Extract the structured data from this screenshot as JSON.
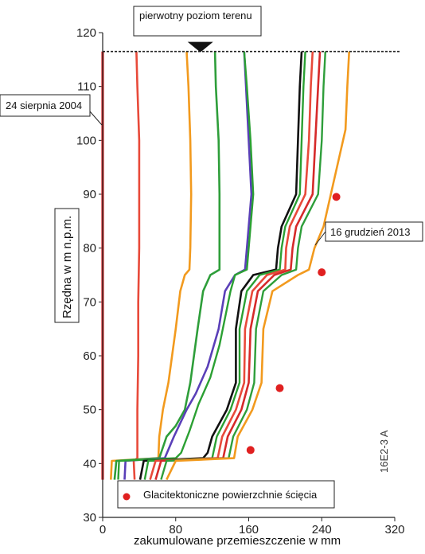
{
  "chart_data": {
    "type": "line",
    "title": "",
    "xlabel": "zakumulowane przemieszczenie w mm",
    "ylabel": "Rzędna w m n.p.m.",
    "xlim": [
      0,
      320
    ],
    "ylim": [
      30,
      120
    ],
    "x_ticks": [
      "0",
      "80",
      "160",
      "240",
      "320"
    ],
    "y_ticks": [
      "30",
      "40",
      "50",
      "60",
      "70",
      "80",
      "90",
      "100",
      "110",
      "120"
    ],
    "ground_level": 116.5,
    "annotations": {
      "ground": "pierwotny poziom terenu",
      "first_date": "24 sierpnia 2004",
      "last_date": "16 grudzień 2013",
      "figure_code": "16E2-3 A"
    },
    "legend": {
      "label": "Glacitektoniczne powierzchnie ścięcia",
      "marker_color": "#e02020"
    },
    "series": [
      {
        "color": "#d62a2a",
        "width": 3.2,
        "points": [
          [
            0,
            116.5
          ],
          [
            0,
            37
          ]
        ]
      },
      {
        "color": "#e84a3a",
        "width": 2.6,
        "points": [
          [
            37,
            116.5
          ],
          [
            38,
            110
          ],
          [
            40,
            100
          ],
          [
            40,
            90
          ],
          [
            40,
            80
          ],
          [
            39,
            70
          ],
          [
            39,
            60
          ],
          [
            38,
            50
          ],
          [
            38,
            41
          ],
          [
            34,
            40.5
          ],
          [
            35,
            37
          ]
        ]
      },
      {
        "color": "#f29a1e",
        "width": 2.6,
        "points": [
          [
            92,
            116.5
          ],
          [
            94,
            110
          ],
          [
            96,
            100
          ],
          [
            97,
            90
          ],
          [
            96,
            80
          ],
          [
            95,
            76
          ],
          [
            90,
            75
          ],
          [
            85,
            72
          ],
          [
            80,
            65
          ],
          [
            72,
            55
          ],
          [
            66,
            50
          ],
          [
            62,
            45
          ],
          [
            61,
            41
          ],
          [
            10,
            40.5
          ],
          [
            9,
            37
          ]
        ]
      },
      {
        "color": "#2e9e3a",
        "width": 2.6,
        "points": [
          [
            123,
            116.5
          ],
          [
            124,
            110
          ],
          [
            127,
            100
          ],
          [
            128,
            90
          ],
          [
            128,
            80
          ],
          [
            128,
            76
          ],
          [
            118,
            75
          ],
          [
            110,
            72
          ],
          [
            104,
            65
          ],
          [
            96,
            55
          ],
          [
            90,
            50
          ],
          [
            80,
            47
          ],
          [
            70,
            45
          ],
          [
            62,
            41
          ],
          [
            15,
            40.5
          ],
          [
            13,
            37
          ]
        ]
      },
      {
        "color": "#5a3fb8",
        "width": 2.6,
        "points": [
          [
            155,
            116.5
          ],
          [
            157,
            110
          ],
          [
            160,
            100
          ],
          [
            163,
            90
          ],
          [
            158,
            80
          ],
          [
            156,
            76
          ],
          [
            145,
            75
          ],
          [
            134,
            72
          ],
          [
            127,
            65
          ],
          [
            115,
            58
          ],
          [
            102,
            53
          ],
          [
            92,
            50
          ],
          [
            78,
            45
          ],
          [
            68,
            41
          ],
          [
            25,
            40.5
          ],
          [
            24,
            37
          ]
        ]
      },
      {
        "color": "#2ba033",
        "width": 2.4,
        "points": [
          [
            155,
            116.5
          ],
          [
            158,
            110
          ],
          [
            162,
            100
          ],
          [
            165,
            90
          ],
          [
            160,
            80
          ],
          [
            158,
            76
          ],
          [
            145,
            75
          ],
          [
            140,
            72
          ],
          [
            128,
            62
          ],
          [
            118,
            56
          ],
          [
            105,
            51
          ],
          [
            95,
            46
          ],
          [
            86,
            42
          ],
          [
            80,
            41
          ],
          [
            18,
            40.5
          ],
          [
            17,
            37
          ]
        ]
      },
      {
        "color": "#111111",
        "width": 2.6,
        "points": [
          [
            218,
            116.5
          ],
          [
            216,
            110
          ],
          [
            214,
            100
          ],
          [
            212,
            90
          ],
          [
            196,
            84
          ],
          [
            192,
            80
          ],
          [
            190,
            76
          ],
          [
            165,
            75
          ],
          [
            152,
            72
          ],
          [
            146,
            65
          ],
          [
            146,
            55
          ],
          [
            136,
            50
          ],
          [
            120,
            45
          ],
          [
            115,
            42
          ],
          [
            110,
            41
          ],
          [
            45,
            40.5
          ],
          [
            41,
            37
          ]
        ]
      },
      {
        "color": "#2ba033",
        "width": 2.4,
        "points": [
          [
            222,
            116.5
          ],
          [
            220,
            110
          ],
          [
            218,
            100
          ],
          [
            216,
            90
          ],
          [
            200,
            84
          ],
          [
            196,
            80
          ],
          [
            194,
            76
          ],
          [
            172,
            75
          ],
          [
            158,
            72
          ],
          [
            150,
            65
          ],
          [
            150,
            55
          ],
          [
            140,
            50
          ],
          [
            125,
            45
          ],
          [
            120,
            41
          ],
          [
            50,
            40.5
          ],
          [
            46,
            37
          ]
        ]
      },
      {
        "color": "#e84a3a",
        "width": 2.6,
        "points": [
          [
            230,
            116.5
          ],
          [
            228,
            110
          ],
          [
            226,
            100
          ],
          [
            222,
            90
          ],
          [
            205,
            84
          ],
          [
            201,
            80
          ],
          [
            200,
            76
          ],
          [
            180,
            75
          ],
          [
            164,
            72
          ],
          [
            156,
            65
          ],
          [
            155,
            55
          ],
          [
            146,
            50
          ],
          [
            131,
            45
          ],
          [
            126,
            41
          ],
          [
            58,
            40.5
          ],
          [
            52,
            37
          ]
        ]
      },
      {
        "color": "#d62a2a",
        "width": 2.6,
        "points": [
          [
            238,
            116.5
          ],
          [
            236,
            110
          ],
          [
            233,
            100
          ],
          [
            230,
            90
          ],
          [
            212,
            84
          ],
          [
            208,
            80
          ],
          [
            206,
            76
          ],
          [
            188,
            75
          ],
          [
            170,
            72
          ],
          [
            162,
            65
          ],
          [
            160,
            55
          ],
          [
            152,
            50
          ],
          [
            137,
            45
          ],
          [
            132,
            41
          ],
          [
            64,
            40.5
          ],
          [
            58,
            37
          ]
        ]
      },
      {
        "color": "#2e9e3a",
        "width": 2.4,
        "points": [
          [
            244,
            116.5
          ],
          [
            242,
            110
          ],
          [
            240,
            100
          ],
          [
            236,
            90
          ],
          [
            218,
            84
          ],
          [
            214,
            80
          ],
          [
            212,
            76
          ],
          [
            196,
            75
          ],
          [
            176,
            72
          ],
          [
            168,
            65
          ],
          [
            166,
            55
          ],
          [
            158,
            50
          ],
          [
            143,
            45
          ],
          [
            138,
            41
          ],
          [
            70,
            40.5
          ],
          [
            64,
            37
          ]
        ]
      },
      {
        "color": "#f29a1e",
        "width": 2.6,
        "points": [
          [
            270,
            116.5
          ],
          [
            268,
            110
          ],
          [
            266,
            102
          ],
          [
            258,
            96
          ],
          [
            250,
            90
          ],
          [
            242,
            84
          ],
          [
            232,
            80
          ],
          [
            226,
            76
          ],
          [
            214,
            75
          ],
          [
            186,
            72
          ],
          [
            176,
            65
          ],
          [
            174,
            55
          ],
          [
            164,
            50
          ],
          [
            148,
            45
          ],
          [
            144,
            41
          ],
          [
            80,
            40.5
          ],
          [
            70,
            37
          ]
        ]
      }
    ],
    "shear_points": [
      [
        256,
        89.5
      ],
      [
        240,
        75.5
      ],
      [
        194,
        54
      ],
      [
        162,
        42.5
      ]
    ]
  }
}
